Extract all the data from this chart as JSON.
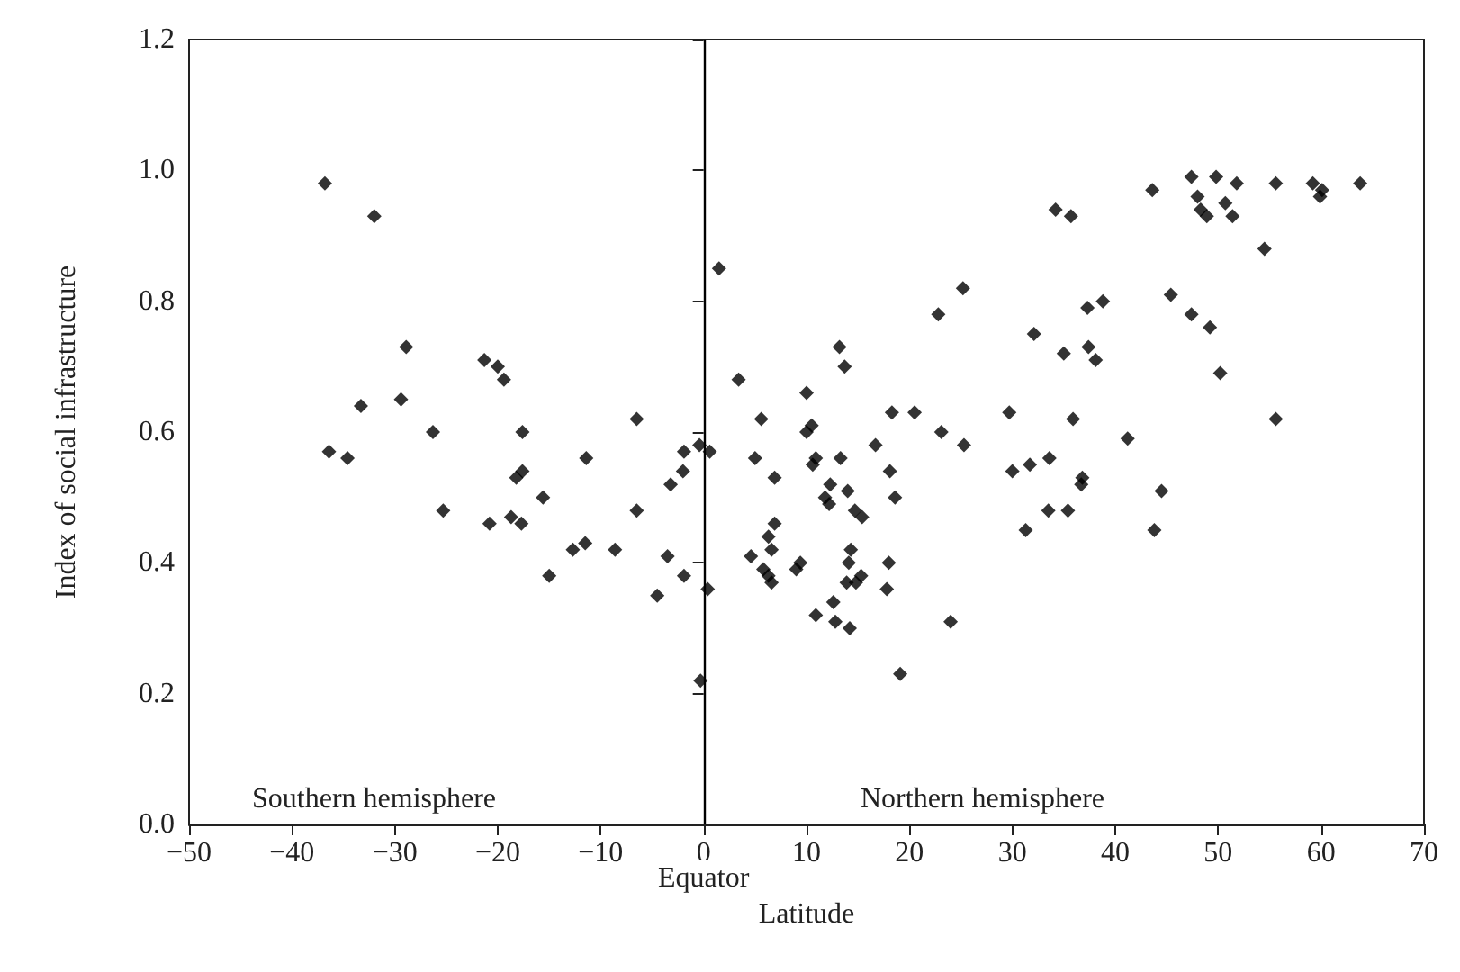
{
  "chart_data": {
    "type": "scatter",
    "xlabel": "Latitude",
    "ylabel": "Index of social infrastructure",
    "marker": "diamond",
    "grid": false,
    "xlim": [
      -50,
      70
    ],
    "xticks": [
      {
        "value": -50,
        "label": "−50"
      },
      {
        "value": -40,
        "label": "−40"
      },
      {
        "value": -30,
        "label": "−30"
      },
      {
        "value": -20,
        "label": "−20"
      },
      {
        "value": -10,
        "label": "−10"
      },
      0,
      10,
      20,
      30,
      40,
      50,
      60,
      70
    ],
    "ylim": [
      0,
      1.2
    ],
    "yticks": [
      {
        "value": 0,
        "label": "0.0"
      },
      {
        "value": 0.2,
        "label": "0.2"
      },
      {
        "value": 0.4,
        "label": "0.4"
      },
      {
        "value": 0.6,
        "label": "0.6"
      },
      {
        "value": 0.8,
        "label": "0.8"
      },
      {
        "value": 1,
        "label": "1.0"
      },
      {
        "value": 1.2,
        "label": "1.2"
      }
    ],
    "ref_lines": [
      {
        "axis": "x",
        "value": 0,
        "label": "Equator",
        "color": "#000000"
      }
    ],
    "annotations": [
      "Southern hemisphere",
      "Northern hemisphere"
    ],
    "series": [
      {
        "color": "#000000",
        "x": [
          -36.8,
          -32.0,
          -28.9,
          -29.4,
          -33.3,
          -36.4,
          -34.6,
          -26.3,
          -25.3,
          -21.3,
          -20.0,
          -19.4,
          -17.6,
          -18.2,
          -17.6,
          -20.8,
          -18.7,
          -17.7,
          -15.6,
          -15.0,
          -11.4,
          -12.7,
          -11.5,
          -8.6,
          -6.5,
          -6.5,
          -3.5,
          -4.5,
          -1.9,
          -2.0,
          -3.2,
          -1.9,
          -0.4,
          0.6,
          0.4,
          -0.3,
          1.5,
          3.4,
          5.6,
          5.0,
          4.6,
          5.8,
          6.3,
          6.6,
          6.9,
          6.9,
          6.3,
          6.6,
          10.0,
          10.0,
          10.5,
          10.6,
          10.9,
          9.0,
          9.4,
          10.9,
          12.6,
          12.8,
          14.2,
          13.2,
          13.7,
          13.3,
          12.3,
          11.8,
          12.2,
          14.0,
          14.7,
          15.4,
          14.3,
          14.1,
          13.9,
          14.8,
          15.3,
          16.7,
          18.3,
          18.1,
          18.6,
          18.0,
          17.8,
          19.1,
          20.5,
          22.8,
          25.2,
          23.1,
          25.3,
          24.0,
          29.7,
          30.0,
          31.7,
          31.3,
          32.1,
          33.6,
          33.5,
          34.2,
          35.7,
          35.0,
          35.9,
          35.4,
          36.8,
          36.7,
          37.3,
          38.8,
          37.4,
          38.1,
          41.2,
          43.6,
          43.8,
          44.5,
          45.4,
          47.4,
          47.4,
          48.0,
          48.3,
          48.9,
          49.8,
          49.2,
          50.2,
          50.7,
          51.4,
          51.8,
          54.5,
          55.6,
          55.6,
          59.2,
          60.1,
          59.9,
          63.8
        ],
        "values": [
          0.98,
          0.93,
          0.73,
          0.65,
          0.64,
          0.57,
          0.56,
          0.6,
          0.48,
          0.71,
          0.7,
          0.68,
          0.6,
          0.53,
          0.54,
          0.46,
          0.47,
          0.46,
          0.5,
          0.38,
          0.56,
          0.42,
          0.43,
          0.42,
          0.62,
          0.48,
          0.41,
          0.35,
          0.57,
          0.54,
          0.52,
          0.38,
          0.58,
          0.57,
          0.36,
          0.22,
          0.85,
          0.68,
          0.62,
          0.56,
          0.41,
          0.39,
          0.44,
          0.42,
          0.46,
          0.53,
          0.38,
          0.37,
          0.66,
          0.6,
          0.61,
          0.55,
          0.56,
          0.39,
          0.4,
          0.32,
          0.34,
          0.31,
          0.3,
          0.73,
          0.7,
          0.56,
          0.52,
          0.5,
          0.49,
          0.51,
          0.48,
          0.47,
          0.42,
          0.4,
          0.37,
          0.37,
          0.38,
          0.58,
          0.63,
          0.54,
          0.5,
          0.4,
          0.36,
          0.23,
          0.63,
          0.78,
          0.82,
          0.6,
          0.58,
          0.31,
          0.63,
          0.54,
          0.55,
          0.45,
          0.75,
          0.56,
          0.48,
          0.94,
          0.93,
          0.72,
          0.62,
          0.48,
          0.53,
          0.52,
          0.79,
          0.8,
          0.73,
          0.71,
          0.59,
          0.97,
          0.45,
          0.51,
          0.81,
          0.99,
          0.78,
          0.96,
          0.94,
          0.93,
          0.99,
          0.76,
          0.69,
          0.95,
          0.93,
          0.98,
          0.88,
          0.98,
          0.62,
          0.98,
          0.97,
          0.96,
          0.98
        ]
      }
    ]
  }
}
